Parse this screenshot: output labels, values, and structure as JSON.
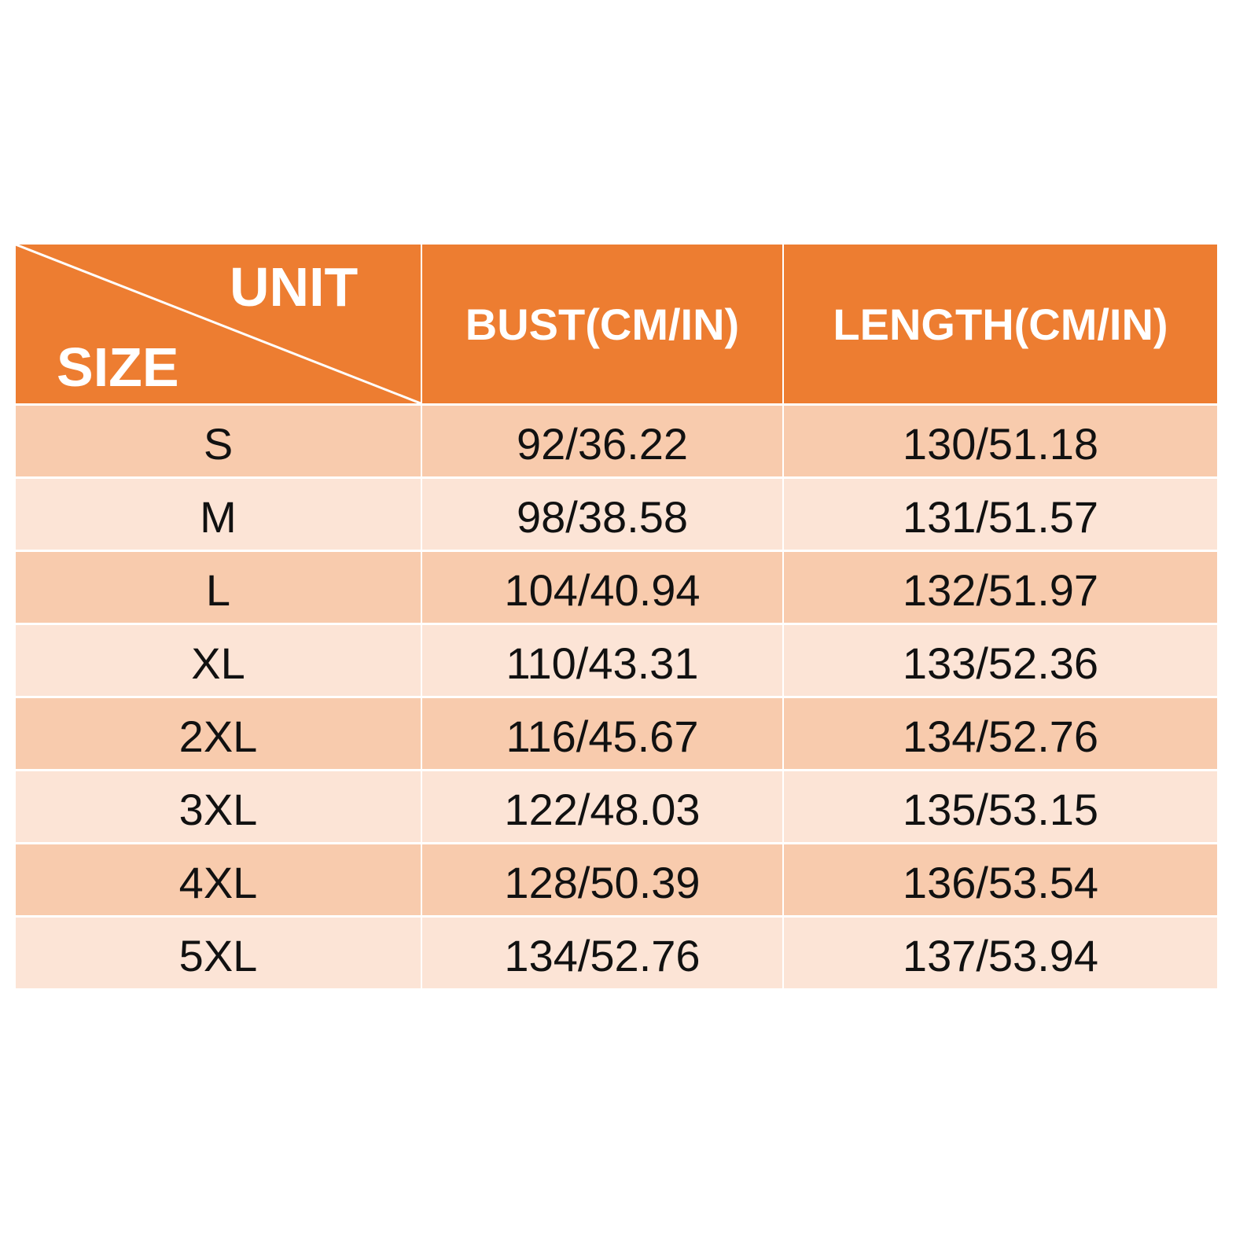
{
  "colors": {
    "header": "#ED7D31",
    "row_odd": "#F8CBAD",
    "row_even": "#FCE4D6",
    "header_text": "#FFFFFF"
  },
  "header": {
    "unit": "UNIT",
    "size": "SIZE",
    "bust": "BUST(CM/IN)",
    "length": "LENGTH(CM/IN)"
  },
  "rows": [
    {
      "size": "S",
      "bust": "92/36.22",
      "length": "130/51.18"
    },
    {
      "size": "M",
      "bust": "98/38.58",
      "length": "131/51.57"
    },
    {
      "size": "L",
      "bust": "104/40.94",
      "length": "132/51.97"
    },
    {
      "size": "XL",
      "bust": "110/43.31",
      "length": "133/52.36"
    },
    {
      "size": "2XL",
      "bust": "116/45.67",
      "length": "134/52.76"
    },
    {
      "size": "3XL",
      "bust": "122/48.03",
      "length": "135/53.15"
    },
    {
      "size": "4XL",
      "bust": "128/50.39",
      "length": "136/53.54"
    },
    {
      "size": "5XL",
      "bust": "134/52.76",
      "length": "137/53.94"
    }
  ]
}
